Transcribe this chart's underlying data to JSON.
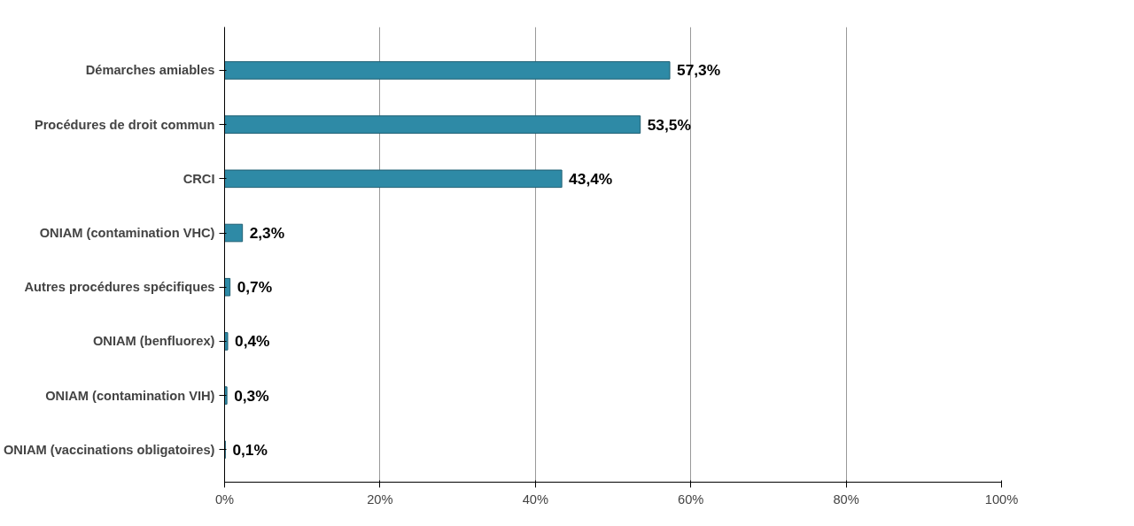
{
  "chart_data": {
    "type": "bar",
    "orientation": "horizontal",
    "categories": [
      "Démarches amiables",
      "Procédures de droit commun",
      "CRCI",
      "ONIAM (contamination VHC)",
      "Autres procédures spécifiques",
      "ONIAM (benfluorex)",
      "ONIAM (contamination VIH)",
      "ONIAM (vaccinations obligatoires)"
    ],
    "values": [
      57.3,
      53.5,
      43.4,
      2.3,
      0.7,
      0.4,
      0.3,
      0.1
    ],
    "value_labels": [
      "57,3%",
      "53,5%",
      "43,4%",
      "2,3%",
      "0,7%",
      "0,4%",
      "0,3%",
      "0,1%"
    ],
    "color": "#2e8aa6",
    "xlim": [
      0,
      100
    ],
    "xticks": [
      {
        "value": 0,
        "label": "0%"
      },
      {
        "value": 20,
        "label": "20%"
      },
      {
        "value": 40,
        "label": "40%"
      },
      {
        "value": 60,
        "label": "60%"
      },
      {
        "value": 80,
        "label": "80%"
      },
      {
        "value": 100,
        "label": "100%"
      }
    ],
    "grid": "x"
  }
}
